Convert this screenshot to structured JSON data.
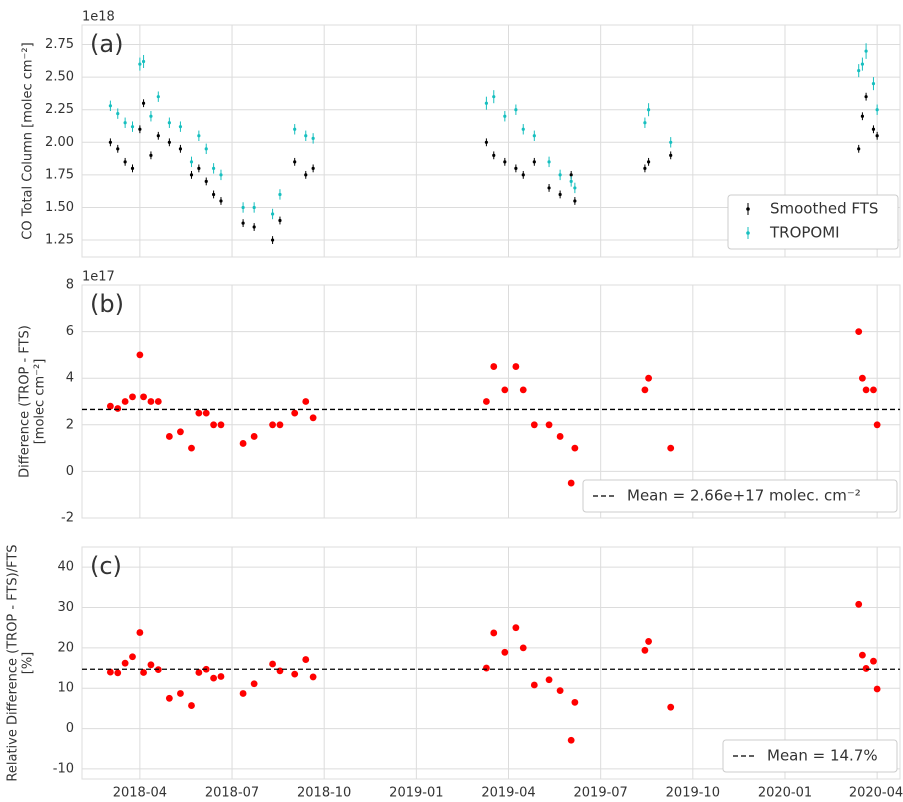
{
  "chart_data": [
    {
      "type": "scatter",
      "panel_label": "(a)",
      "y_offset_label": "1e18",
      "ylabel": [
        "CO Total Column [molec cm⁻²]"
      ],
      "xlim": [
        2018.093,
        2020.312
      ],
      "xticks": [
        2018.25,
        2018.5,
        2018.75,
        2019.0,
        2019.25,
        2019.5,
        2019.75,
        2020.0,
        2020.25
      ],
      "ylim": [
        1.12,
        2.9
      ],
      "yticks": [
        1.25,
        {
          "value": 1.5,
          "label": "1.50"
        },
        1.75,
        {
          "value": 2.0,
          "label": "2.00"
        },
        2.25,
        {
          "value": 2.5,
          "label": "2.50"
        },
        2.75
      ],
      "grid": true,
      "legend": "lower right",
      "series": [
        {
          "name": "Smoothed FTS",
          "color": "#000000",
          "x": [
            2018.17,
            2018.19,
            2018.21,
            2018.23,
            2018.25,
            2018.26,
            2018.28,
            2018.3,
            2018.33,
            2018.36,
            2018.39,
            2018.41,
            2018.43,
            2018.45,
            2018.47,
            2018.53,
            2018.56,
            2018.61,
            2018.63,
            2018.67,
            2018.7,
            2018.72,
            2019.19,
            2019.21,
            2019.24,
            2019.27,
            2019.29,
            2019.32,
            2019.36,
            2019.39,
            2019.42,
            2019.43,
            2019.62,
            2019.63,
            2019.69,
            2020.2,
            2020.21,
            2020.22,
            2020.24,
            2020.25
          ],
          "values": [
            2.0,
            1.95,
            1.85,
            1.8,
            2.1,
            2.3,
            1.9,
            2.05,
            2.0,
            1.95,
            1.75,
            1.8,
            1.7,
            1.6,
            1.55,
            1.38,
            1.35,
            1.25,
            1.4,
            1.85,
            1.75,
            1.8,
            2.0,
            1.9,
            1.85,
            1.8,
            1.75,
            1.85,
            1.65,
            1.6,
            1.75,
            1.55,
            1.8,
            1.85,
            1.9,
            1.95,
            2.2,
            2.35,
            2.1,
            2.05
          ],
          "errors": [
            0.03,
            0.03,
            0.03,
            0.03,
            0.03,
            0.03,
            0.03,
            0.03,
            0.03,
            0.03,
            0.03,
            0.03,
            0.03,
            0.03,
            0.03,
            0.03,
            0.03,
            0.03,
            0.03,
            0.03,
            0.03,
            0.03,
            0.03,
            0.03,
            0.03,
            0.03,
            0.03,
            0.03,
            0.03,
            0.03,
            0.03,
            0.03,
            0.03,
            0.03,
            0.03,
            0.03,
            0.03,
            0.03,
            0.03,
            0.03
          ]
        },
        {
          "name": "TROPOMI",
          "color": "#17bfbf",
          "x": [
            2018.17,
            2018.19,
            2018.21,
            2018.23,
            2018.25,
            2018.26,
            2018.28,
            2018.3,
            2018.33,
            2018.36,
            2018.39,
            2018.41,
            2018.43,
            2018.45,
            2018.47,
            2018.53,
            2018.56,
            2018.61,
            2018.63,
            2018.67,
            2018.7,
            2018.72,
            2019.19,
            2019.21,
            2019.24,
            2019.27,
            2019.29,
            2019.32,
            2019.36,
            2019.39,
            2019.42,
            2019.43,
            2019.62,
            2019.63,
            2019.69,
            2020.2,
            2020.21,
            2020.22,
            2020.24,
            2020.25
          ],
          "values": [
            2.28,
            2.22,
            2.15,
            2.12,
            2.6,
            2.62,
            2.2,
            2.35,
            2.15,
            2.12,
            1.85,
            2.05,
            1.95,
            1.8,
            1.75,
            1.5,
            1.5,
            1.45,
            1.6,
            2.1,
            2.05,
            2.03,
            2.3,
            2.35,
            2.2,
            2.25,
            2.1,
            2.05,
            1.85,
            1.75,
            1.7,
            1.65,
            2.15,
            2.25,
            2.0,
            2.55,
            2.6,
            2.7,
            2.45,
            2.25
          ],
          "errors": [
            0.04,
            0.04,
            0.04,
            0.04,
            0.05,
            0.05,
            0.04,
            0.04,
            0.04,
            0.04,
            0.04,
            0.04,
            0.04,
            0.04,
            0.04,
            0.04,
            0.04,
            0.04,
            0.04,
            0.04,
            0.04,
            0.04,
            0.05,
            0.05,
            0.04,
            0.04,
            0.04,
            0.04,
            0.04,
            0.04,
            0.04,
            0.04,
            0.04,
            0.05,
            0.04,
            0.05,
            0.05,
            0.06,
            0.05,
            0.04
          ]
        }
      ]
    },
    {
      "type": "scatter",
      "panel_label": "(b)",
      "y_offset_label": "1e17",
      "ylabel": [
        "Difference (TROP - FTS)",
        "[molec cm⁻²]"
      ],
      "xlim": [
        2018.093,
        2020.312
      ],
      "xticks": [
        2018.25,
        2018.5,
        2018.75,
        2019.0,
        2019.25,
        2019.5,
        2019.75,
        2020.0,
        2020.25
      ],
      "ylim": [
        -2,
        8
      ],
      "yticks": [
        -2,
        0,
        2,
        4,
        6,
        8
      ],
      "grid": true,
      "legend": "lower right",
      "mean": {
        "value": 2.66,
        "label": "Mean = 2.66e+17 molec. cm⁻²"
      },
      "series": [
        {
          "color": "#ff0000",
          "x": [
            2018.17,
            2018.19,
            2018.21,
            2018.23,
            2018.25,
            2018.26,
            2018.28,
            2018.3,
            2018.33,
            2018.36,
            2018.39,
            2018.41,
            2018.43,
            2018.45,
            2018.47,
            2018.53,
            2018.56,
            2018.61,
            2018.63,
            2018.67,
            2018.7,
            2018.72,
            2019.19,
            2019.21,
            2019.24,
            2019.27,
            2019.29,
            2019.32,
            2019.36,
            2019.39,
            2019.42,
            2019.43,
            2019.62,
            2019.63,
            2019.69,
            2020.2,
            2020.21,
            2020.22,
            2020.24,
            2020.25
          ],
          "values": [
            2.8,
            2.7,
            3.0,
            3.2,
            5.0,
            3.2,
            3.0,
            3.0,
            1.5,
            1.7,
            1.0,
            2.5,
            2.5,
            2.0,
            2.0,
            1.2,
            1.5,
            2.0,
            2.0,
            2.5,
            3.0,
            2.3,
            3.0,
            4.5,
            3.5,
            4.5,
            3.5,
            2.0,
            2.0,
            1.5,
            -0.5,
            1.0,
            3.5,
            4.0,
            1.0,
            6.0,
            4.0,
            3.5,
            3.5,
            2.0
          ]
        }
      ]
    },
    {
      "type": "scatter",
      "panel_label": "(c)",
      "ylabel": [
        "Relative Difference (TROP - FTS)/FTS",
        "[%]"
      ],
      "xlim": [
        2018.093,
        2020.312
      ],
      "xticks": [
        {
          "value": 2018.25,
          "label": "2018-04"
        },
        {
          "value": 2018.5,
          "label": "2018-07"
        },
        {
          "value": 2018.75,
          "label": "2018-10"
        },
        {
          "value": 2019.0,
          "label": "2019-01"
        },
        {
          "value": 2019.25,
          "label": "2019-04"
        },
        {
          "value": 2019.5,
          "label": "2019-07"
        },
        {
          "value": 2019.75,
          "label": "2019-10"
        },
        {
          "value": 2020.0,
          "label": "2020-01"
        },
        {
          "value": 2020.25,
          "label": "2020-04"
        }
      ],
      "ylim": [
        -12.5,
        45
      ],
      "yticks": [
        -10,
        0,
        10,
        20,
        30,
        40
      ],
      "grid": true,
      "legend": "lower right",
      "mean": {
        "value": 14.7,
        "label": "Mean = 14.7%"
      },
      "series": [
        {
          "color": "#ff0000",
          "x": [
            2018.17,
            2018.19,
            2018.21,
            2018.23,
            2018.25,
            2018.26,
            2018.28,
            2018.3,
            2018.33,
            2018.36,
            2018.39,
            2018.41,
            2018.43,
            2018.45,
            2018.47,
            2018.53,
            2018.56,
            2018.61,
            2018.63,
            2018.67,
            2018.7,
            2018.72,
            2019.19,
            2019.21,
            2019.24,
            2019.27,
            2019.29,
            2019.32,
            2019.36,
            2019.39,
            2019.42,
            2019.43,
            2019.62,
            2019.63,
            2019.69,
            2020.2,
            2020.21,
            2020.22,
            2020.24,
            2020.25
          ],
          "values": [
            14.0,
            13.8,
            16.2,
            17.8,
            23.8,
            13.9,
            15.8,
            14.6,
            7.5,
            8.7,
            5.7,
            13.9,
            14.7,
            12.5,
            12.9,
            8.7,
            11.1,
            16.0,
            14.3,
            13.5,
            17.1,
            12.8,
            15.0,
            23.7,
            18.9,
            25.0,
            20.0,
            10.8,
            12.1,
            9.4,
            -2.9,
            6.5,
            19.4,
            21.6,
            5.3,
            30.8,
            18.2,
            14.9,
            16.7,
            9.8
          ]
        }
      ]
    }
  ]
}
